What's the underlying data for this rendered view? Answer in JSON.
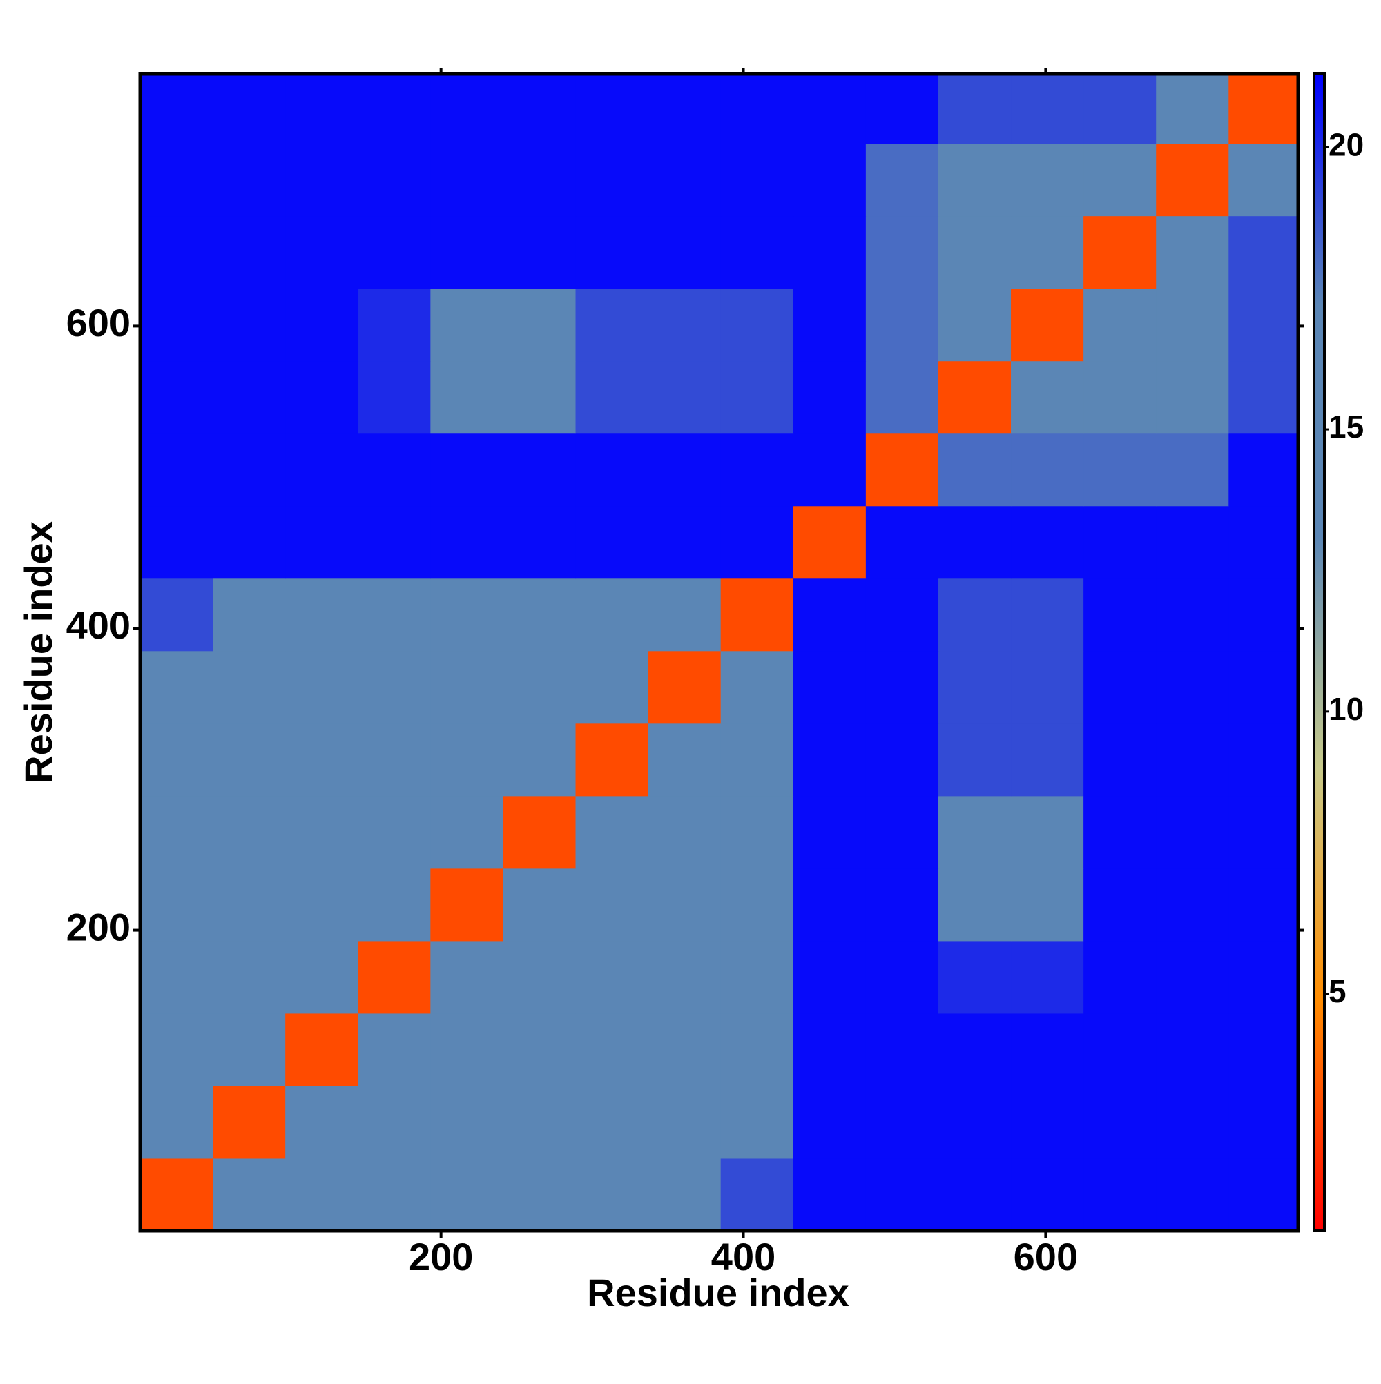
{
  "chart_data": {
    "type": "heatmap",
    "xlabel": "Residue index",
    "ylabel": "Residue index",
    "x_bins": [
      1,
      49,
      97,
      145,
      193,
      241,
      289,
      337,
      385,
      433,
      481,
      529,
      577,
      625,
      673,
      721,
      767
    ],
    "y_bins": [
      1,
      49,
      97,
      145,
      193,
      241,
      289,
      337,
      385,
      433,
      481,
      529,
      577,
      625,
      673,
      721,
      767
    ],
    "values": [
      [
        3,
        17,
        17,
        17,
        17,
        17,
        17,
        17,
        19,
        21,
        21,
        21,
        21,
        21,
        21,
        21
      ],
      [
        17,
        3,
        14,
        14,
        14,
        14,
        14,
        14,
        16,
        21,
        21,
        21,
        21,
        21,
        21,
        21
      ],
      [
        17,
        14,
        3,
        14,
        14,
        14,
        14,
        14,
        16,
        21,
        21,
        21,
        21,
        21,
        21,
        21
      ],
      [
        17,
        14,
        14,
        3,
        14,
        14,
        14,
        14,
        16,
        21,
        21,
        20,
        20,
        21,
        21,
        21
      ],
      [
        17,
        14,
        14,
        14,
        3,
        14,
        14,
        14,
        16,
        21,
        21,
        17,
        17,
        21,
        21,
        21
      ],
      [
        17,
        14,
        14,
        14,
        14,
        3,
        14,
        14,
        14,
        21,
        21,
        17,
        17,
        21,
        21,
        21
      ],
      [
        17,
        14,
        14,
        14,
        14,
        14,
        3,
        14,
        14,
        21,
        21,
        19,
        19,
        21,
        21,
        21
      ],
      [
        17,
        14,
        14,
        14,
        14,
        14,
        14,
        3,
        14,
        21,
        21,
        19,
        19,
        21,
        21,
        21
      ],
      [
        19,
        16,
        16,
        16,
        16,
        14,
        14,
        14,
        3,
        21,
        21,
        19,
        19,
        21,
        21,
        21
      ],
      [
        21,
        21,
        21,
        21,
        21,
        21,
        21,
        21,
        21,
        3,
        21,
        21,
        21,
        21,
        21,
        21
      ],
      [
        21,
        21,
        21,
        21,
        21,
        21,
        21,
        21,
        21,
        21,
        3,
        18,
        18,
        18,
        18,
        21
      ],
      [
        21,
        21,
        21,
        20,
        17,
        17,
        19,
        19,
        19,
        21,
        18,
        3,
        14,
        14,
        14,
        19
      ],
      [
        21,
        21,
        21,
        20,
        17,
        17,
        19,
        19,
        19,
        21,
        18,
        14,
        3,
        14,
        14,
        19
      ],
      [
        21,
        21,
        21,
        21,
        21,
        21,
        21,
        21,
        21,
        21,
        18,
        14,
        14,
        3,
        14,
        19
      ],
      [
        21,
        21,
        21,
        21,
        21,
        21,
        21,
        21,
        21,
        21,
        18,
        14,
        14,
        14,
        3,
        16
      ],
      [
        21,
        21,
        21,
        21,
        21,
        21,
        21,
        21,
        21,
        21,
        21,
        19,
        19,
        19,
        16,
        3
      ]
    ],
    "xlim": [
      1,
      767
    ],
    "ylim": [
      1,
      767
    ],
    "xticks": [
      200,
      400,
      600
    ],
    "yticks": [
      200,
      400,
      600
    ],
    "clim": [
      0.8,
      21.3
    ],
    "colorbar_ticks": [
      5,
      10,
      15,
      20
    ],
    "colors": [
      "#ff0000",
      "#ff8c00",
      "#c7c98a",
      "#5b86b5",
      "#5b86b5",
      "#0000ff"
    ]
  }
}
